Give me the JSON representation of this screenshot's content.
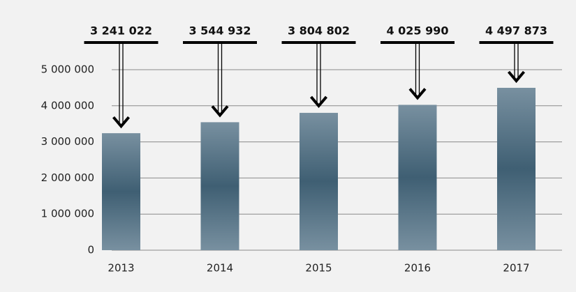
{
  "chart_data": {
    "type": "bar",
    "categories": [
      "2013",
      "2014",
      "2015",
      "2016",
      "2017"
    ],
    "values": [
      3241022,
      3544932,
      3804802,
      4025990,
      4497873
    ],
    "value_labels": [
      "3 241 022",
      "3 544 932",
      "3 804 802",
      "4 025 990",
      "4 497 873"
    ],
    "color": "#4f6d80",
    "ylim": [
      0,
      5000000
    ],
    "yticks": [
      0,
      {
        "value": 1000000,
        "label": "1 000 000"
      },
      {
        "value": 2000000,
        "label": "2 000 000"
      },
      {
        "value": 3000000,
        "label": "3 000 000"
      },
      {
        "value": 4000000,
        "label": "4 000 000"
      },
      {
        "value": 5000000,
        "label": "5 000 000"
      }
    ],
    "grid": true
  }
}
